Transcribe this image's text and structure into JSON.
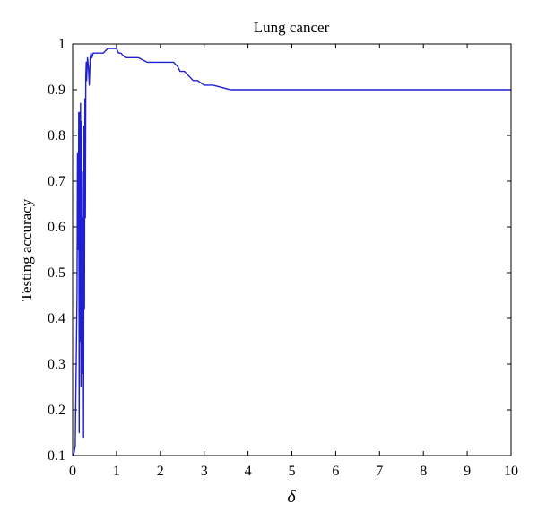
{
  "chart_data": {
    "type": "line",
    "title": "Lung cancer",
    "xlabel": "δ",
    "ylabel": "Testing accuracy",
    "xlim": [
      0,
      10
    ],
    "ylim": [
      0.1,
      1
    ],
    "xticks": [
      "0",
      "1",
      "2",
      "3",
      "4",
      "5",
      "6",
      "7",
      "8",
      "9",
      "10"
    ],
    "yticks": [
      "0.1",
      "0.2",
      "0.3",
      "0.4",
      "0.5",
      "0.6",
      "0.7",
      "0.8",
      "0.9",
      "1"
    ],
    "grid": false,
    "line_color": "#1f1fd6",
    "series": [
      {
        "x": [
          0.02,
          0.06,
          0.1,
          0.11,
          0.13,
          0.14,
          0.15,
          0.16,
          0.17,
          0.18,
          0.19,
          0.2,
          0.21,
          0.22,
          0.23,
          0.24,
          0.25,
          0.26,
          0.27,
          0.28,
          0.29,
          0.3,
          0.31,
          0.32,
          0.34,
          0.36,
          0.38,
          0.4,
          0.42,
          0.44,
          0.47,
          0.5,
          0.55,
          0.6,
          0.65,
          0.7,
          0.8,
          0.85,
          0.92,
          1.0,
          1.05,
          1.1,
          1.2,
          1.35,
          1.5,
          1.7,
          1.9,
          2.1,
          2.3,
          2.4,
          2.45,
          2.55,
          2.65,
          2.75,
          2.85,
          3.0,
          3.2,
          3.4,
          3.6,
          3.8,
          4.0,
          5.0,
          6.0,
          7.0,
          8.0,
          9.0,
          10.0
        ],
        "y": [
          0.1,
          0.12,
          0.45,
          0.76,
          0.55,
          0.85,
          0.15,
          0.85,
          0.35,
          0.87,
          0.25,
          0.83,
          0.4,
          0.72,
          0.28,
          0.62,
          0.14,
          0.82,
          0.42,
          0.88,
          0.62,
          0.93,
          0.96,
          0.92,
          0.97,
          0.95,
          0.91,
          0.97,
          0.98,
          0.97,
          0.98,
          0.98,
          0.98,
          0.98,
          0.98,
          0.98,
          0.99,
          0.99,
          0.99,
          0.99,
          0.98,
          0.98,
          0.97,
          0.97,
          0.97,
          0.96,
          0.96,
          0.96,
          0.96,
          0.95,
          0.94,
          0.94,
          0.93,
          0.92,
          0.92,
          0.91,
          0.91,
          0.905,
          0.9,
          0.9,
          0.9,
          0.9,
          0.9,
          0.9,
          0.9,
          0.9,
          0.9
        ]
      }
    ]
  }
}
